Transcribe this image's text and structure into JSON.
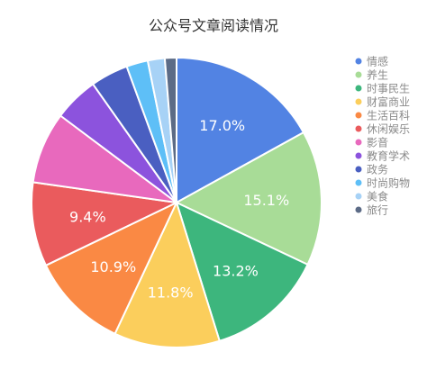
{
  "chart_data": {
    "type": "pie",
    "title": "公众号文章阅读情况",
    "legend_position": "right",
    "slices": [
      {
        "name": "情感",
        "value": 17.0,
        "label": "17.0%",
        "color": "#5283e3"
      },
      {
        "name": "养生",
        "value": 15.1,
        "label": "15.1%",
        "color": "#a8dc97"
      },
      {
        "name": "时事民生",
        "value": 13.2,
        "label": "13.2%",
        "color": "#3db67d"
      },
      {
        "name": "财富商业",
        "value": 11.8,
        "label": "11.8%",
        "color": "#fbce5c"
      },
      {
        "name": "生活百科",
        "value": 10.9,
        "label": "10.9%",
        "color": "#fa8944"
      },
      {
        "name": "休闲娱乐",
        "value": 9.4,
        "label": "9.4%",
        "color": "#ea5b5d"
      },
      {
        "name": "影音",
        "value": 8.0,
        "label": "",
        "color": "#e869bd"
      },
      {
        "name": "教育学术",
        "value": 5.0,
        "label": "",
        "color": "#8c53dd"
      },
      {
        "name": "政务",
        "value": 4.2,
        "label": "",
        "color": "#4a5fc1"
      },
      {
        "name": "时尚购物",
        "value": 2.4,
        "label": "",
        "color": "#5ebff7"
      },
      {
        "name": "美食",
        "value": 1.9,
        "label": "",
        "color": "#a7d2f6"
      },
      {
        "name": "旅行",
        "value": 1.3,
        "label": "",
        "color": "#5c6b86"
      }
    ]
  }
}
